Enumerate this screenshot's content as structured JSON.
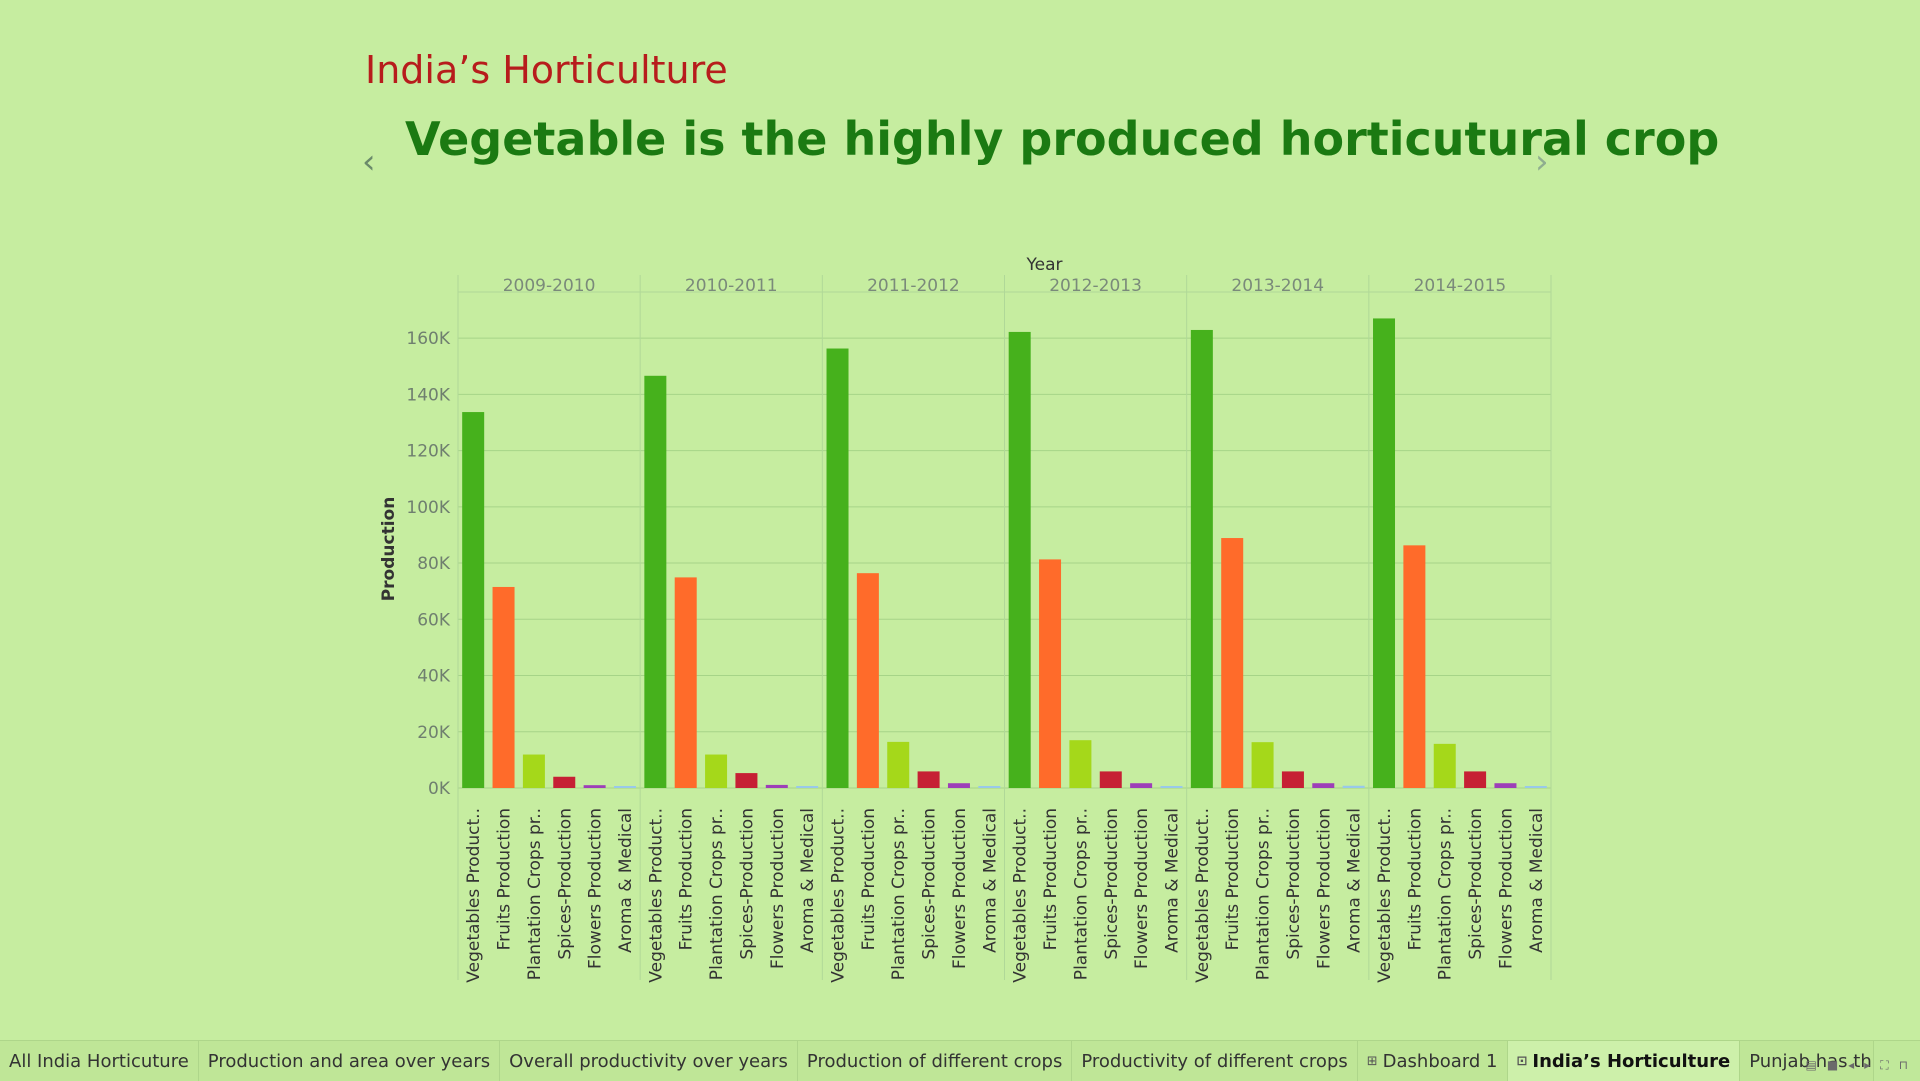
{
  "story": {
    "title": "India’s Horticulture",
    "caption": "Vegetable is the highly produced horticutural crop"
  },
  "nav": {
    "prev_icon": "‹",
    "next_icon": "›"
  },
  "chart_data": {
    "type": "bar",
    "column_header": "Year",
    "ylabel": "Production",
    "ylim": [
      0,
      170000
    ],
    "yticks": [
      0,
      20000,
      40000,
      60000,
      80000,
      100000,
      120000,
      140000,
      160000
    ],
    "ytick_labels": [
      "0K",
      "20K",
      "40K",
      "60K",
      "80K",
      "100K",
      "120K",
      "140K",
      "160K"
    ],
    "grid": true,
    "years": [
      "2009-2010",
      "2010-2011",
      "2011-2012",
      "2012-2013",
      "2013-2014",
      "2014-2015"
    ],
    "category_labels": [
      "Vegetables Product..",
      "Fruits Production",
      "Plantation Crops pr..",
      "Spices-Production",
      "Flowers Production",
      "Aroma & Medical"
    ],
    "series": [
      {
        "color": "#46b11c",
        "values": [
          133700,
          146600,
          156300,
          162200,
          162900,
          167000
        ]
      },
      {
        "color": "#ff6b2a",
        "values": [
          71500,
          74900,
          76400,
          81300,
          88900,
          86300
        ]
      },
      {
        "color": "#a5d81a",
        "values": [
          11900,
          11900,
          16400,
          17000,
          16300,
          15700
        ]
      },
      {
        "color": "#c62034",
        "values": [
          4000,
          5300,
          5900,
          5900,
          5900,
          5900
        ]
      },
      {
        "color": "#9d3fb8",
        "values": [
          1000,
          1100,
          1700,
          1700,
          1700,
          1700
        ]
      },
      {
        "color": "#98c8ea",
        "values": [
          600,
          600,
          600,
          600,
          800,
          700
        ]
      }
    ]
  },
  "tabs": [
    {
      "label": "All India Horticuture",
      "icon": ""
    },
    {
      "label": "Production and area over years",
      "icon": ""
    },
    {
      "label": "Overall productivity over years",
      "icon": ""
    },
    {
      "label": "Production of different crops",
      "icon": ""
    },
    {
      "label": "Productivity of different crops",
      "icon": ""
    },
    {
      "label": "Dashboard 1",
      "icon": "⊞"
    },
    {
      "label": "India’s Horticulture",
      "icon": "⊡",
      "active": true
    },
    {
      "label": "Punjab has th",
      "icon": ""
    }
  ],
  "toolbar": [
    "▤",
    "■",
    "◂",
    "▸",
    "⛶",
    "⊓"
  ]
}
